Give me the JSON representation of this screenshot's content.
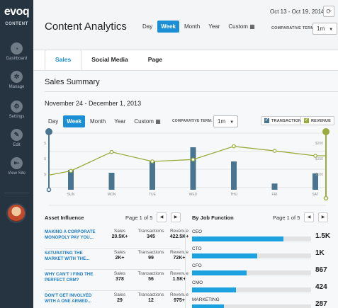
{
  "sidebar": {
    "logo": "evoq",
    "logo_sub": "CONTENT",
    "items": [
      {
        "label": "Dashboard",
        "icon": "dashboard-icon"
      },
      {
        "label": "Manage",
        "icon": "manage-icon"
      },
      {
        "label": "Settings",
        "icon": "settings-icon"
      },
      {
        "label": "Edit",
        "icon": "edit-icon"
      },
      {
        "label": "View Site",
        "icon": "view-site-icon"
      }
    ]
  },
  "header": {
    "title": "Content Analytics",
    "range_tabs": [
      "Day",
      "Week",
      "Month",
      "Year",
      "Custom"
    ],
    "active_range": "Week",
    "date_range": "Oct 13 - Oct 19, 2014",
    "comparative_term_label": "COMPARATIVE TERM:",
    "comparative_term_value": "1m"
  },
  "main_tabs": [
    "Sales",
    "Social Media",
    "Page"
  ],
  "active_main_tab": "Sales",
  "summary": {
    "title": "Sales Summary",
    "week_label": "November 24 - December 1, 2013",
    "range_tabs": [
      "Day",
      "Week",
      "Month",
      "Year",
      "Custom"
    ],
    "comparative_term_label": "COMPARATIVE TERM:",
    "comparative_term_value": "1m",
    "legend_transactions": "TRANSACTIONS",
    "legend_revenue": "REVENUE"
  },
  "chart_data": {
    "type": "bar",
    "categories": [
      "SUN",
      "MON",
      "TUE",
      "WED",
      "THU",
      "FRI",
      "SAT"
    ],
    "series": [
      {
        "name": "TRANSACTIONS",
        "type": "bar",
        "values": [
          35,
          30,
          50,
          75,
          50,
          11,
          29
        ]
      },
      {
        "name": "REVENUE",
        "type": "line",
        "values": [
          110,
          160,
          135,
          140,
          175,
          163,
          150
        ]
      }
    ],
    "left_ticks": [
      "$",
      "$",
      "$"
    ],
    "right_ticks": [
      "$200",
      "$150",
      "$100"
    ],
    "ylim_transactions": [
      0,
      100
    ],
    "ylim_revenue": [
      60,
      210
    ],
    "colors": {
      "bar": "#4a7590",
      "line": "#9aaa3c",
      "grid": "#e6e6e6"
    }
  },
  "asset_influence": {
    "title": "Asset Influence",
    "pager": "Page 1 of 5",
    "columns": [
      "Sales",
      "Transactions",
      "Revenue"
    ],
    "rows": [
      {
        "title": "MAKING A CORPORATE MONOPOLY PAY YOU...",
        "sales": "20.5K+",
        "transactions": "345",
        "revenue": "422.5K+"
      },
      {
        "title": "SATURATING THE MARKET WITH THE...",
        "sales": "2K+",
        "transactions": "99",
        "revenue": "72K+"
      },
      {
        "title": "WHY CAN'T I FIND THE PERFECT CRM?",
        "sales": "378",
        "transactions": "56",
        "revenue": "1.5K+"
      },
      {
        "title": "DON'T GET INVOLVED WITH A ONE ARMED...",
        "sales": "29",
        "transactions": "12",
        "revenue": "975+"
      }
    ]
  },
  "job_function": {
    "title": "By Job Function",
    "pager": "Page 1 of 5",
    "rows": [
      {
        "label": "CEO",
        "value": "1.5K",
        "fraction": 0.77
      },
      {
        "label": "CTO",
        "value": "1K",
        "fraction": 0.55
      },
      {
        "label": "CFO",
        "value": "867",
        "fraction": 0.46
      },
      {
        "label": "CMO",
        "value": "424",
        "fraction": 0.37
      },
      {
        "label": "MARKETING",
        "value": "287",
        "fraction": 0.27
      }
    ]
  }
}
